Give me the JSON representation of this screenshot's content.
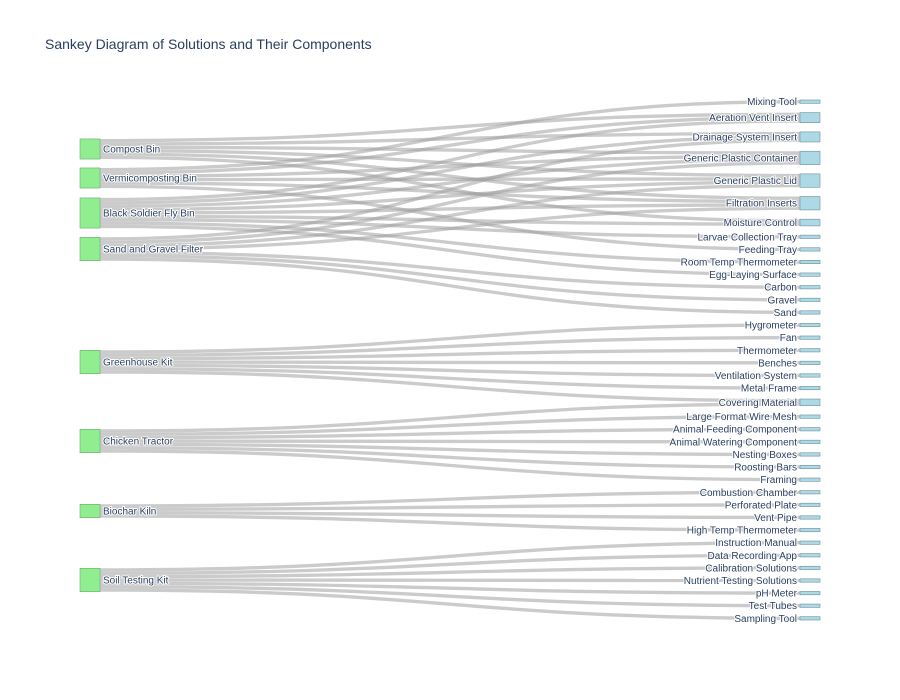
{
  "chart_data": {
    "type": "sankey",
    "title": "Sankey Diagram of Solutions and Their Components",
    "colors": {
      "source_node": "#90ee90",
      "source_node_border": "#6fa86f",
      "target_node": "#add8e6",
      "target_node_border": "#6e8e99",
      "link": "#a0a0a0",
      "label": "#2a3f5f",
      "title": "#2a3f5f"
    },
    "sources": [
      {
        "name": "Compost Bin",
        "components": [
          "Aeration Vent Insert",
          "Drainage System Insert",
          "Generic Plastic Container",
          "Generic Plastic Lid",
          "Filtration Inserts",
          "Moisture Control"
        ]
      },
      {
        "name": "Vermicomposting Bin",
        "components": [
          "Mixing Tool",
          "Aeration Vent Insert",
          "Generic Plastic Container",
          "Generic Plastic Lid",
          "Filtration Inserts",
          "Feeding Tray"
        ]
      },
      {
        "name": "Black Soldier Fly Bin",
        "components": [
          "Aeration Vent Insert",
          "Drainage System Insert",
          "Generic Plastic Container",
          "Generic Plastic Lid",
          "Filtration Inserts",
          "Moisture Control",
          "Larvae Collection Tray",
          "Room Temp Thermometer",
          "Egg-Laying Surface"
        ]
      },
      {
        "name": "Sand and Gravel Filter",
        "components": [
          "Drainage System Insert",
          "Generic Plastic Container",
          "Generic Plastic Lid",
          "Filtration Inserts",
          "Carbon",
          "Gravel",
          "Sand"
        ]
      },
      {
        "name": "Greenhouse Kit",
        "components": [
          "Hygrometer",
          "Fan",
          "Thermometer",
          "Benches",
          "Ventilation System",
          "Metal Frame",
          "Covering Material"
        ]
      },
      {
        "name": "Chicken Tractor",
        "components": [
          "Covering Material",
          "Large Format Wire Mesh",
          "Animal Feeding Component",
          "Animal Watering Component",
          "Nesting Boxes",
          "Roosting Bars",
          "Framing"
        ]
      },
      {
        "name": "Biochar Kiln",
        "components": [
          "Combustion Chamber",
          "Perforated Plate",
          "Vent Pipe",
          "High Temp Thermometer"
        ]
      },
      {
        "name": "Soil Testing Kit",
        "components": [
          "Instruction Manual",
          "Data Recording App",
          "Calibration Solutions",
          "Nutrient Testing Solutions",
          "pH Meter",
          "Test Tubes",
          "Sampling Tool"
        ]
      }
    ],
    "targets": [
      "Mixing Tool",
      "Aeration Vent Insert",
      "Drainage System Insert",
      "Generic Plastic Container",
      "Generic Plastic Lid",
      "Filtration Inserts",
      "Moisture Control",
      "Larvae Collection Tray",
      "Feeding Tray",
      "Room Temp Thermometer",
      "Egg-Laying Surface",
      "Carbon",
      "Gravel",
      "Sand",
      "Hygrometer",
      "Fan",
      "Thermometer",
      "Benches",
      "Ventilation System",
      "Metal Frame",
      "Covering Material",
      "Large Format Wire Mesh",
      "Animal Feeding Component",
      "Animal Watering Component",
      "Nesting Boxes",
      "Roosting Bars",
      "Framing",
      "Combustion Chamber",
      "Perforated Plate",
      "Vent Pipe",
      "High Temp Thermometer",
      "Instruction Manual",
      "Data Recording App",
      "Calibration Solutions",
      "Nutrient Testing Solutions",
      "pH Meter",
      "Test Tubes",
      "Sampling Tool"
    ],
    "link_value": 1
  }
}
